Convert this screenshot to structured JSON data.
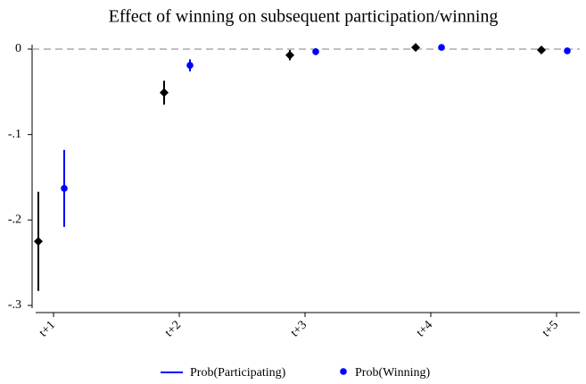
{
  "chart_data": {
    "type": "errorbar",
    "title": "Effect of winning on subsequent participation/winning",
    "categories": [
      "t+1",
      "t+2",
      "t+3",
      "t+4",
      "t+5"
    ],
    "series": [
      {
        "name": "Prob(Participating)",
        "color": "#000000",
        "marker": "diamond",
        "values": [
          -0.225,
          -0.051,
          -0.007,
          0.002,
          -0.001
        ],
        "errors": [
          0.058,
          0.014,
          0.006,
          0.003,
          0.002
        ]
      },
      {
        "name": "Prob(Winning)",
        "color": "#0000ff",
        "marker": "circle",
        "values": [
          -0.163,
          -0.019,
          -0.003,
          0.002,
          -0.002
        ],
        "errors": [
          0.045,
          0.007,
          0.004,
          0.002,
          0.002
        ]
      }
    ],
    "legend_key_color": "#0000ff",
    "ylim": [
      -0.3,
      0
    ],
    "yticks": [
      {
        "value": -0.3,
        "label": "-.3"
      },
      {
        "value": -0.2,
        "label": "-.2"
      },
      {
        "value": -0.1,
        "label": "-.1"
      },
      0
    ],
    "reference_line": 0,
    "legend": "bottom"
  }
}
